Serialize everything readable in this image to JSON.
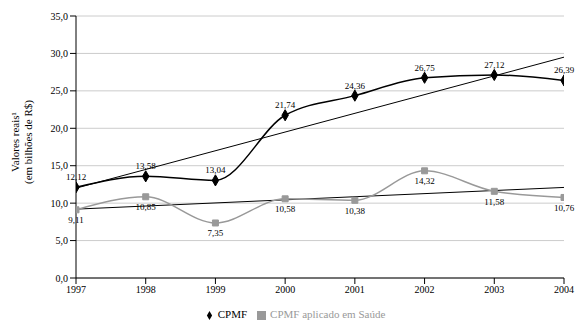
{
  "chart_data": {
    "type": "line",
    "ylabel": [
      "Valores reais¹",
      "(em bilhões de R$)"
    ],
    "x": [
      1997,
      1998,
      1999,
      2000,
      2001,
      2002,
      2003,
      2004
    ],
    "xlim": [
      1997,
      2004
    ],
    "xticks": [
      1997,
      1998,
      1999,
      2000,
      2001,
      2002,
      2003,
      2004
    ],
    "ylim": [
      0,
      35
    ],
    "yticks": [
      {
        "value": 0,
        "label": "0,0"
      },
      {
        "value": 5,
        "label": "5,0"
      },
      {
        "value": 10,
        "label": "10,0"
      },
      {
        "value": 15,
        "label": "15,0"
      },
      {
        "value": 20,
        "label": "20,0"
      },
      {
        "value": 25,
        "label": "25,0"
      },
      {
        "value": 30,
        "label": "30,0"
      },
      {
        "value": 35,
        "label": "35,0"
      }
    ],
    "grid": true,
    "legend": "bottom",
    "data_labels": true,
    "series": [
      {
        "name": "CPMF",
        "color": "#000000",
        "marker": "diamond",
        "values": [
          12.12,
          13.58,
          13.04,
          21.74,
          24.36,
          26.75,
          27.12,
          26.39
        ],
        "value_labels": [
          "12,12",
          "13,58",
          "13,04",
          "21,74",
          "24,36",
          "26,75",
          "27,12",
          "26,39"
        ],
        "trend": [
          12.0,
          29.5
        ]
      },
      {
        "name": "CPMF aplicado em Saúde",
        "color": "#999999",
        "marker": "square",
        "values": [
          9.11,
          10.85,
          7.35,
          10.58,
          10.38,
          14.32,
          11.58,
          10.76
        ],
        "value_labels": [
          "9,11",
          "10,85",
          "7,35",
          "10,58",
          "10,38",
          "14,32",
          "11,58",
          "10,76"
        ],
        "trend": [
          9.2,
          12.1
        ]
      }
    ]
  }
}
